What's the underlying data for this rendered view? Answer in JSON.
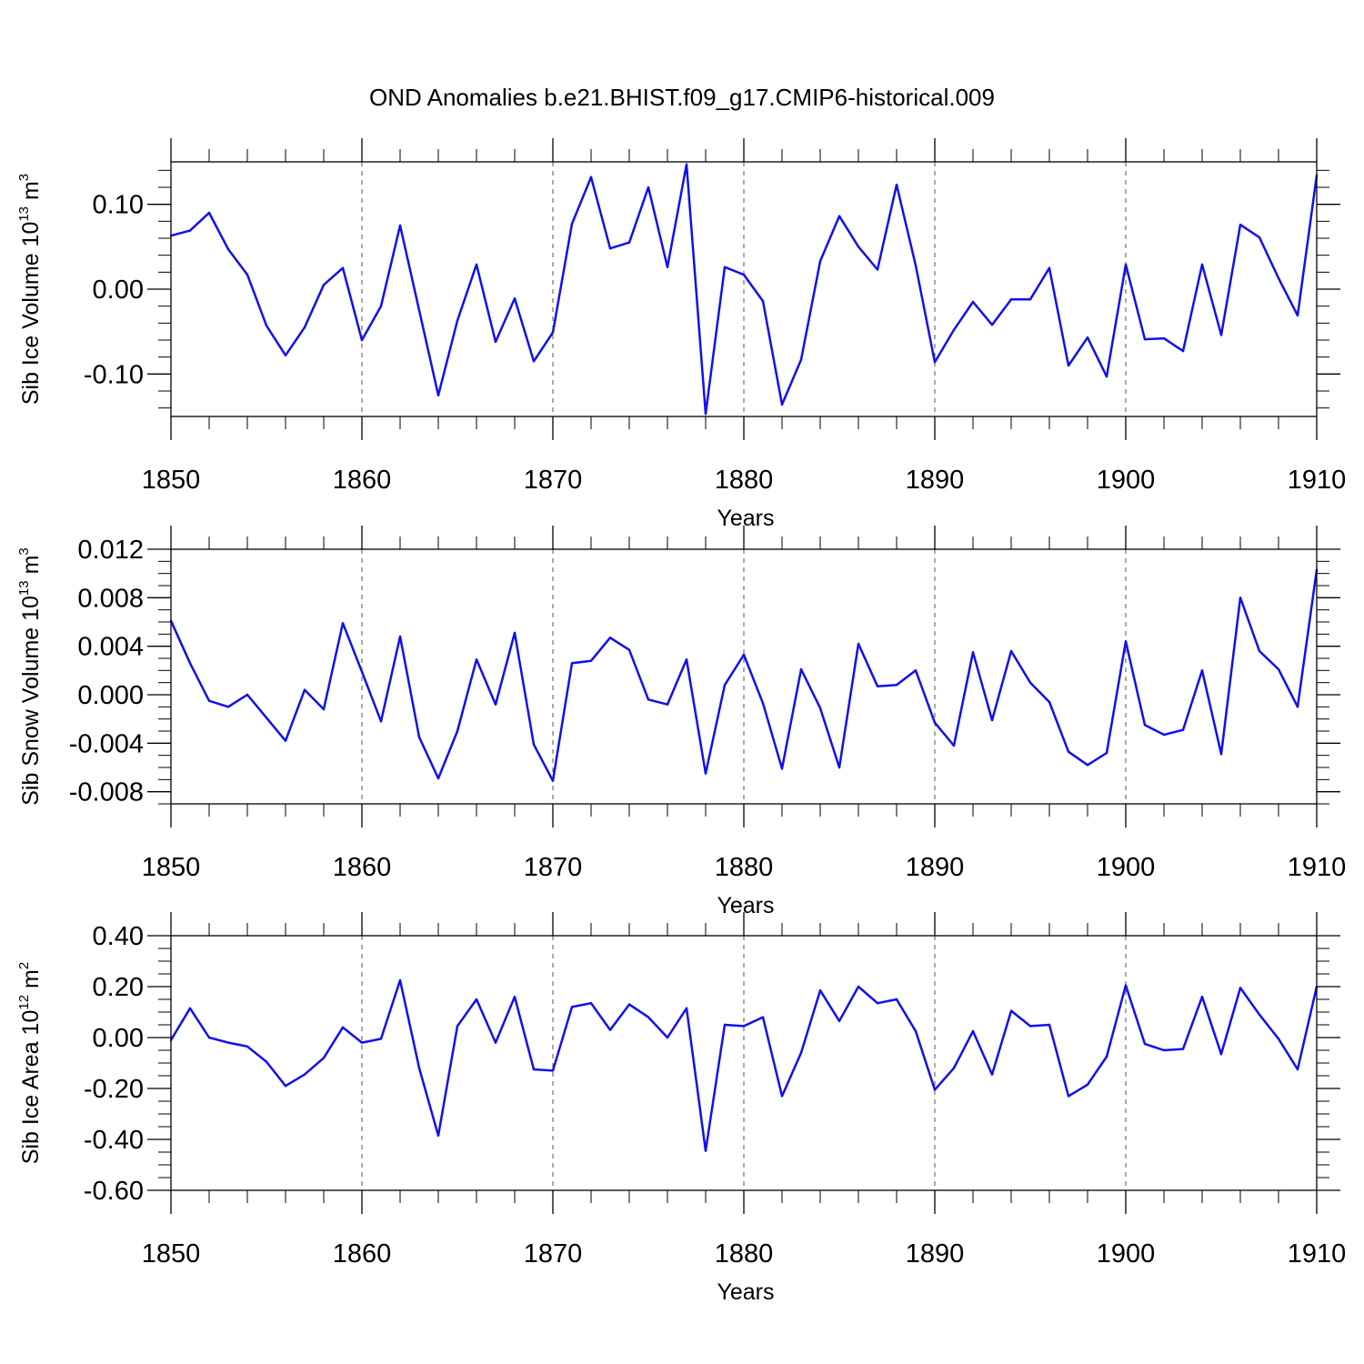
{
  "title": "OND Anomalies b.e21.BHIST.f09_g17.CMIP6-historical.009",
  "colors": {
    "series": "#1010f0",
    "axes": "#000000",
    "grid": "#555555"
  },
  "chart_data": [
    {
      "type": "line",
      "ylabel_main": "Sib Ice Volume 10",
      "ylabel_exp": "13",
      "ylabel_unit": " m",
      "ylabel_unit_exp": "3",
      "xlabel": "Years",
      "xlim": [
        1850,
        1910
      ],
      "ylim": [
        -0.15,
        0.15
      ],
      "yticks": [
        -0.1,
        0.0,
        0.1
      ],
      "ytick_labels": [
        "-0.10",
        "0.00",
        "0.10"
      ],
      "yminor_step": 0.02,
      "xticks": [
        1850,
        1860,
        1870,
        1880,
        1890,
        1900,
        1910
      ],
      "xtick_labels": [
        "1850",
        "1860",
        "1870",
        "1880",
        "1890",
        "1900",
        "1910"
      ],
      "x_start": 1850,
      "values": [
        0.063,
        0.069,
        0.09,
        0.047,
        0.017,
        -0.043,
        -0.078,
        -0.045,
        0.005,
        0.025,
        -0.06,
        -0.02,
        0.075,
        -0.025,
        -0.125,
        -0.037,
        0.029,
        -0.062,
        -0.011,
        -0.085,
        -0.051,
        0.077,
        0.132,
        0.048,
        0.055,
        0.12,
        0.026,
        0.147,
        -0.147,
        0.026,
        0.017,
        -0.014,
        -0.136,
        -0.083,
        0.033,
        0.086,
        0.05,
        0.023,
        0.123,
        0.028,
        -0.086,
        -0.048,
        -0.015,
        -0.042,
        -0.012,
        -0.012,
        0.025,
        -0.09,
        -0.057,
        -0.103,
        0.029,
        -0.059,
        -0.058,
        -0.073,
        0.029,
        -0.054,
        0.076,
        0.061,
        0.013,
        -0.031,
        0.134
      ]
    },
    {
      "type": "line",
      "ylabel_main": "Sib Snow Volume 10",
      "ylabel_exp": "13",
      "ylabel_unit": " m",
      "ylabel_unit_exp": "3",
      "xlabel": "Years",
      "xlim": [
        1850,
        1910
      ],
      "ylim": [
        -0.009,
        0.012
      ],
      "yticks": [
        -0.008,
        -0.004,
        0.0,
        0.004,
        0.008,
        0.012
      ],
      "ytick_labels": [
        "-0.008",
        "-0.004",
        "0.000",
        "0.004",
        "0.008",
        "0.012"
      ],
      "yminor_step": 0.001,
      "xticks": [
        1850,
        1860,
        1870,
        1880,
        1890,
        1900,
        1910
      ],
      "xtick_labels": [
        "1850",
        "1860",
        "1870",
        "1880",
        "1890",
        "1900",
        "1910"
      ],
      "x_start": 1850,
      "values": [
        0.0061,
        0.0026,
        -0.0005,
        -0.001,
        0.0,
        -0.0019,
        -0.0038,
        0.0004,
        -0.0012,
        0.0059,
        0.0019,
        -0.0022,
        0.0048,
        -0.0035,
        -0.0069,
        -0.003,
        0.0029,
        -0.0008,
        0.0051,
        -0.0041,
        -0.0071,
        0.0026,
        0.0028,
        0.0047,
        0.0037,
        -0.0004,
        -0.0008,
        0.0029,
        -0.0065,
        0.0008,
        0.0033,
        -0.0007,
        -0.0061,
        0.0021,
        -0.0011,
        -0.006,
        0.0042,
        0.0007,
        0.0008,
        0.002,
        -0.0023,
        -0.0042,
        0.0035,
        -0.0021,
        0.0036,
        0.001,
        -0.0006,
        -0.0047,
        -0.0058,
        -0.0048,
        0.0044,
        -0.0025,
        -0.0033,
        -0.0029,
        0.002,
        -0.0049,
        0.008,
        0.0036,
        0.0021,
        -0.001,
        0.0103
      ]
    },
    {
      "type": "line",
      "ylabel_main": "Sib Ice Area 10",
      "ylabel_exp": "12",
      "ylabel_unit": " m",
      "ylabel_unit_exp": "2",
      "xlabel": "Years",
      "xlim": [
        1850,
        1910
      ],
      "ylim": [
        -0.6,
        0.4
      ],
      "yticks": [
        -0.6,
        -0.4,
        -0.2,
        0.0,
        0.2,
        0.4
      ],
      "ytick_labels": [
        "-0.60",
        "-0.40",
        "-0.20",
        "0.00",
        "0.20",
        "0.40"
      ],
      "yminor_step": 0.05,
      "xticks": [
        1850,
        1860,
        1870,
        1880,
        1890,
        1900,
        1910
      ],
      "xtick_labels": [
        "1850",
        "1860",
        "1870",
        "1880",
        "1890",
        "1900",
        "1910"
      ],
      "x_start": 1850,
      "values": [
        -0.01,
        0.115,
        0.0,
        -0.02,
        -0.035,
        -0.095,
        -0.19,
        -0.145,
        -0.08,
        0.04,
        -0.02,
        -0.005,
        0.225,
        -0.12,
        -0.385,
        0.045,
        0.15,
        -0.02,
        0.16,
        -0.125,
        -0.13,
        0.12,
        0.135,
        0.03,
        0.13,
        0.08,
        0.0,
        0.115,
        -0.445,
        0.05,
        0.045,
        0.08,
        -0.23,
        -0.06,
        0.185,
        0.065,
        0.2,
        0.135,
        0.15,
        0.025,
        -0.205,
        -0.12,
        0.025,
        -0.145,
        0.105,
        0.045,
        0.05,
        -0.23,
        -0.185,
        -0.075,
        0.205,
        -0.025,
        -0.05,
        -0.045,
        0.16,
        -0.065,
        0.195,
        0.09,
        -0.005,
        -0.125,
        0.2
      ]
    }
  ]
}
